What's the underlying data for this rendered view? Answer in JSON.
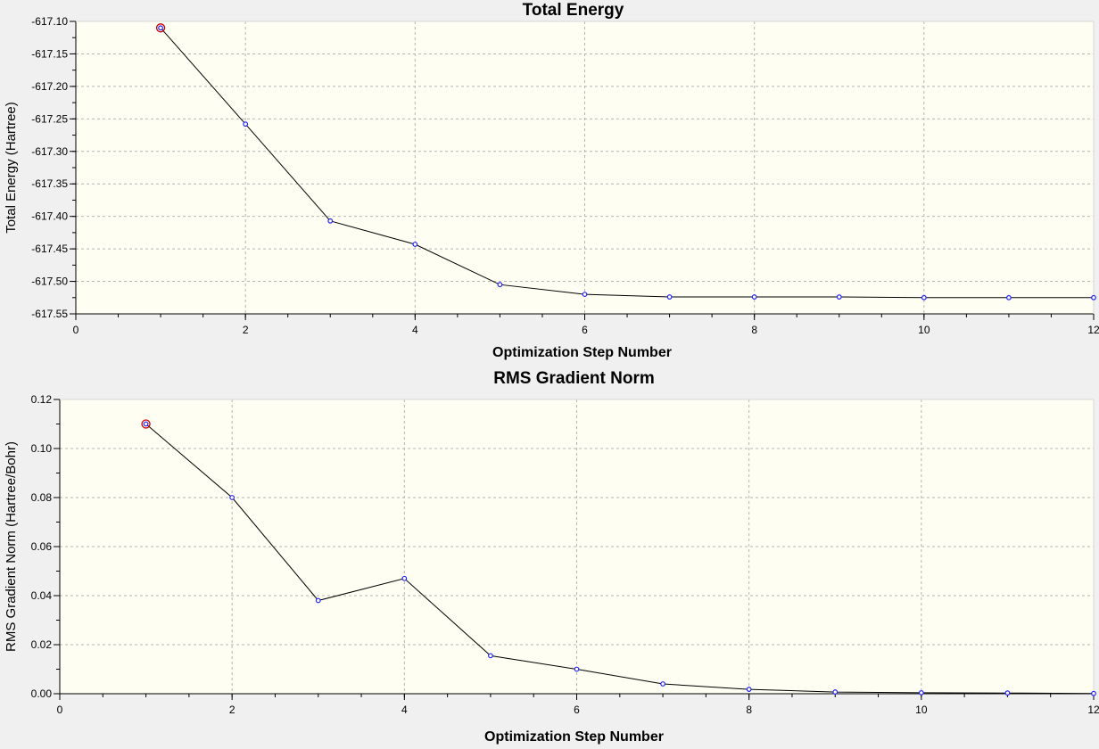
{
  "colors": {
    "page_background": "#f0f0f0",
    "plot_background": "#fefef3",
    "grid": "#b4b4b4",
    "axis": "#000000",
    "line": "#000000",
    "marker": "#2020ff",
    "highlight_marker": "#cc0000"
  },
  "chart_data": [
    {
      "type": "line",
      "title": "Total Energy",
      "xlabel": "Optimization Step Number",
      "ylabel": "Total Energy (Hartree)",
      "xlim": [
        0,
        12
      ],
      "ylim": [
        -617.55,
        -617.1
      ],
      "grid": true,
      "x_ticks": [
        "0",
        "2",
        "4",
        "6",
        "8",
        "10",
        "12"
      ],
      "y_ticks": [
        "-617.55",
        "-617.50",
        "-617.45",
        "-617.40",
        "-617.35",
        "-617.30",
        "-617.25",
        "-617.20",
        "-617.15",
        "-617.10"
      ],
      "x": [
        1,
        2,
        3,
        4,
        5,
        6,
        7,
        8,
        9,
        10,
        11,
        12
      ],
      "values": [
        -617.11,
        -617.258,
        -617.407,
        -617.443,
        -617.505,
        -617.52,
        -617.524,
        -617.524,
        -617.524,
        -617.525,
        -617.525,
        -617.525
      ],
      "highlight_index": 0
    },
    {
      "type": "line",
      "title": "RMS Gradient Norm",
      "xlabel": "Optimization Step Number",
      "ylabel": "RMS Gradient Norm (Hartree/Bohr)",
      "xlim": [
        0,
        12
      ],
      "ylim": [
        0,
        0.12
      ],
      "grid": true,
      "x_ticks": [
        "0",
        "2",
        "4",
        "6",
        "8",
        "10",
        "12"
      ],
      "y_ticks": [
        "0.00",
        "0.02",
        "0.04",
        "0.06",
        "0.08",
        "0.10",
        "0.12"
      ],
      "x": [
        1,
        2,
        3,
        4,
        5,
        6,
        7,
        8,
        9,
        10,
        11,
        12
      ],
      "values": [
        0.11,
        0.08,
        0.038,
        0.047,
        0.0155,
        0.01,
        0.004,
        0.0018,
        0.0007,
        0.0004,
        0.0003,
        0.0001
      ],
      "highlight_index": 0
    }
  ]
}
